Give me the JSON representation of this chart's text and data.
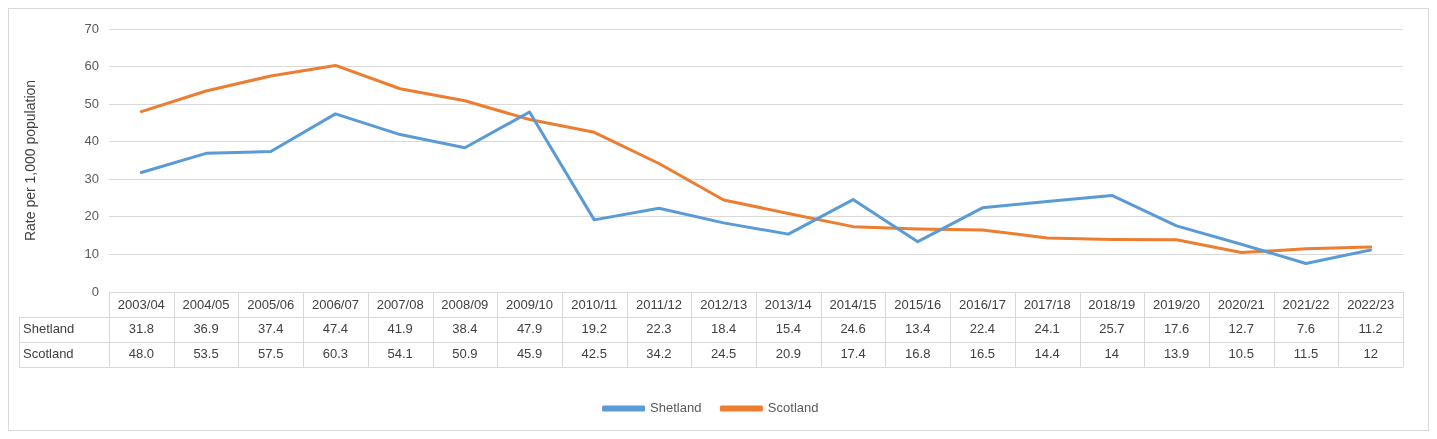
{
  "chart_data": {
    "type": "line",
    "ylabel": "Rate per 1,000 population",
    "categories": [
      "2003/04",
      "2004/05",
      "2005/06",
      "2006/07",
      "2007/08",
      "2008/09",
      "2009/10",
      "2010/11",
      "2011/12",
      "2012/13",
      "2013/14",
      "2014/15",
      "2015/16",
      "2016/17",
      "2017/18",
      "2018/19",
      "2019/20",
      "2020/21",
      "2021/22",
      "2022/23"
    ],
    "series": [
      {
        "name": "Shetland",
        "color": "#5b9bd5",
        "values": [
          31.8,
          36.9,
          37.4,
          47.4,
          41.9,
          38.4,
          47.9,
          19.2,
          22.3,
          18.4,
          15.4,
          24.6,
          13.4,
          22.4,
          24.1,
          25.7,
          17.6,
          12.7,
          7.6,
          11.2
        ],
        "value_labels": [
          "31.8",
          "36.9",
          "37.4",
          "47.4",
          "41.9",
          "38.4",
          "47.9",
          "19.2",
          "22.3",
          "18.4",
          "15.4",
          "24.6",
          "13.4",
          "22.4",
          "24.1",
          "25.7",
          "17.6",
          "12.7",
          "7.6",
          "11.2"
        ]
      },
      {
        "name": "Scotland",
        "color": "#ed7d31",
        "values": [
          48.0,
          53.5,
          57.5,
          60.3,
          54.1,
          50.9,
          45.9,
          42.5,
          34.2,
          24.5,
          20.9,
          17.4,
          16.8,
          16.5,
          14.4,
          14,
          13.9,
          10.5,
          11.5,
          12
        ],
        "value_labels": [
          "48.0",
          "53.5",
          "57.5",
          "60.3",
          "54.1",
          "50.9",
          "45.9",
          "42.5",
          "34.2",
          "24.5",
          "20.9",
          "17.4",
          "16.8",
          "16.5",
          "14.4",
          "14",
          "13.9",
          "10.5",
          "11.5",
          "12"
        ]
      }
    ],
    "ylim": [
      0,
      70
    ],
    "yticks": [
      0,
      10,
      20,
      30,
      40,
      50,
      60,
      70
    ],
    "grid": "y",
    "legend": "bottom",
    "marker": "none",
    "line_style": "solid"
  }
}
